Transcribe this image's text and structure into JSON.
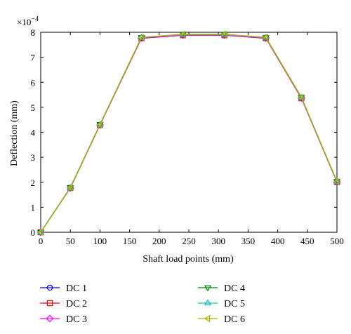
{
  "chart_data": {
    "type": "line",
    "xlabel": "Shaft load points (mm)",
    "ylabel": "Deflection (mm)",
    "y_scale_label": "×10",
    "y_scale_exponent": "−4",
    "xlim": [
      0,
      500
    ],
    "ylim": [
      0,
      8
    ],
    "x_ticks": [
      "0",
      "50",
      "100",
      "150",
      "200",
      "250",
      "300",
      "350",
      "400",
      "450",
      "500"
    ],
    "y_ticks": [
      "0",
      "1",
      "2",
      "3",
      "4",
      "5",
      "6",
      "7",
      "8"
    ],
    "grid": false,
    "legend_placement": "below",
    "x": [
      0,
      50,
      100,
      170,
      240,
      310,
      380,
      440,
      500
    ],
    "series": [
      {
        "name": "DC 1",
        "color": "#0000ff",
        "marker": "circle",
        "values": [
          0,
          1.78,
          4.3,
          7.78,
          7.9,
          7.9,
          7.78,
          5.38,
          2.02
        ]
      },
      {
        "name": "DC 2",
        "color": "#ff0000",
        "marker": "square",
        "values": [
          0,
          1.77,
          4.29,
          7.76,
          7.88,
          7.88,
          7.76,
          5.36,
          2.01
        ]
      },
      {
        "name": "DC 3",
        "color": "#ff00ff",
        "marker": "diamond",
        "values": [
          0,
          1.77,
          4.29,
          7.77,
          7.89,
          7.89,
          7.77,
          5.37,
          2.01
        ]
      },
      {
        "name": "DC 4",
        "color": "#008000",
        "marker": "triangle-down",
        "values": [
          0,
          1.79,
          4.31,
          7.79,
          7.92,
          7.92,
          7.79,
          5.4,
          2.03
        ]
      },
      {
        "name": "DC 5",
        "color": "#00c0c0",
        "marker": "triangle-up",
        "values": [
          0,
          1.78,
          4.31,
          7.79,
          7.91,
          7.91,
          7.79,
          5.39,
          2.02
        ]
      },
      {
        "name": "DC 6",
        "color": "#b0b000",
        "marker": "triangle-left",
        "values": [
          0,
          1.78,
          4.3,
          7.8,
          7.92,
          7.92,
          7.8,
          5.4,
          2.03
        ]
      }
    ]
  }
}
